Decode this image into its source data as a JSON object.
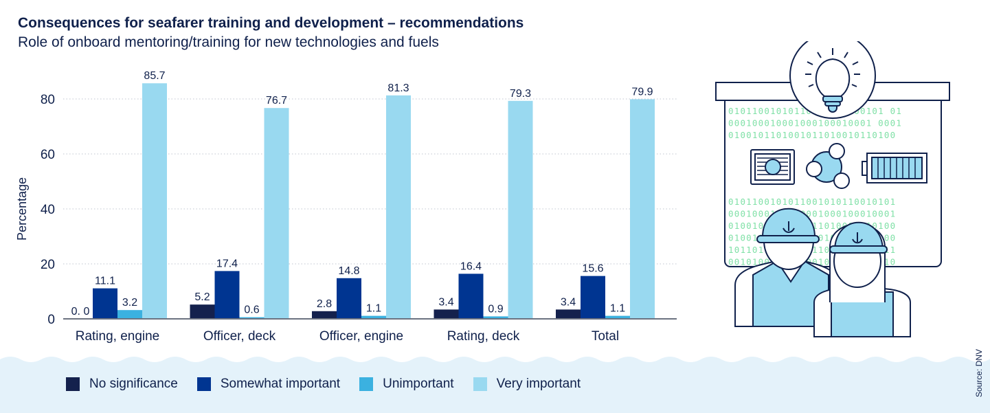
{
  "title": "Consequences for seafarer training and development – recommendations",
  "subtitle": "Role of onboard mentoring/training for new technologies and fuels",
  "source": "Source: DNV",
  "chart_data": {
    "type": "bar",
    "title": "Consequences for seafarer training and development – recommendations",
    "subtitle": "Role of onboard mentoring/training for new technologies and fuels",
    "xlabel": "",
    "ylabel": "Percentage",
    "ylim": [
      0,
      90
    ],
    "yticks": [
      0,
      20,
      40,
      60,
      80
    ],
    "grid": "horizontal dotted",
    "legend_position": "bottom",
    "categories": [
      "Rating, engine",
      "Officer, deck",
      "Officer, engine",
      "Rating, deck",
      "Total"
    ],
    "series": [
      {
        "name": "No significance",
        "color": "#14214d",
        "values": [
          0.0,
          5.2,
          2.8,
          3.4,
          3.4
        ],
        "labels": [
          "0. 0",
          "5.2",
          "2.8",
          "3.4",
          "3.4"
        ]
      },
      {
        "name": "Somewhat important",
        "color": "#003591",
        "values": [
          11.1,
          17.4,
          14.8,
          16.4,
          15.6
        ],
        "labels": [
          "11.1",
          "17.4",
          "14.8",
          "16.4",
          "15.6"
        ]
      },
      {
        "name": "Unimportant",
        "color": "#3bb1e0",
        "values": [
          3.2,
          0.6,
          1.1,
          0.9,
          1.1
        ],
        "labels": [
          "3.2",
          "0.6",
          "1.1",
          "0.9",
          "1.1"
        ]
      },
      {
        "name": "Very important",
        "color": "#99d9f0",
        "values": [
          85.7,
          76.7,
          81.3,
          79.3,
          79.9
        ],
        "labels": [
          "85.7",
          "76.7",
          "81.3",
          "79.3",
          "79.9"
        ]
      }
    ]
  },
  "illustration": {
    "binary_rows": [
      "01011001010110010101100101 01",
      "000100010001000100010001 0001",
      "0100101101001011010010110100"
    ],
    "binary_rows_lower": [
      "0101100101011001010110010101",
      "0001000100010001000100010001",
      "0100101101001011010010110100",
      "0100100100100100100100100100",
      "1011011011011011011011011011",
      "0010100100101001001010010010"
    ]
  }
}
